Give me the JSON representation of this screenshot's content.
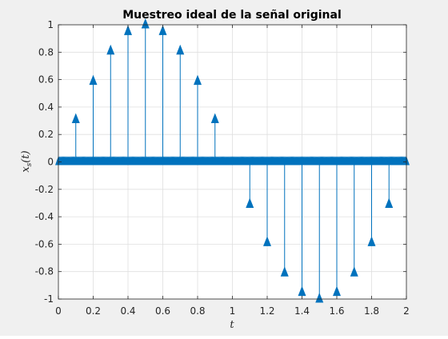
{
  "chart_data": {
    "type": "stem",
    "title": "Muestreo ideal de la señal original",
    "xlabel": "t",
    "ylabel": "x_s(t)",
    "ylabel_main": "x",
    "ylabel_sub": "s",
    "ylabel_arg": "(t)",
    "xlim": [
      0,
      2
    ],
    "ylim": [
      -1,
      1
    ],
    "xticks": [
      0,
      0.2,
      0.4,
      0.6,
      0.8,
      1,
      1.2,
      1.4,
      1.6,
      1.8,
      2
    ],
    "xtick_labels": [
      "0",
      "0.2",
      "0.4",
      "0.6",
      "0.8",
      "1",
      "1.2",
      "1.4",
      "1.6",
      "1.8",
      "2"
    ],
    "yticks": [
      -1,
      -0.8,
      -0.6,
      -0.4,
      -0.2,
      0,
      0.2,
      0.4,
      0.6,
      0.8,
      1
    ],
    "ytick_labels": [
      "-1",
      "-0.8",
      "-0.6",
      "-0.4",
      "-0.2",
      "0",
      "0.2",
      "0.4",
      "0.6",
      "0.8",
      "1"
    ],
    "grid": true,
    "marker": "triangle-up",
    "color": "#0072bd",
    "nonzero_samples": {
      "x": [
        0.1,
        0.2,
        0.3,
        0.4,
        0.5,
        0.6,
        0.7,
        0.8,
        0.9,
        1.1,
        1.2,
        1.3,
        1.4,
        1.5,
        1.6,
        1.7,
        1.8,
        1.9
      ],
      "y": [
        0.309,
        0.588,
        0.809,
        0.951,
        1.0,
        0.951,
        0.809,
        0.588,
        0.309,
        -0.309,
        -0.588,
        -0.809,
        -0.951,
        -1.0,
        -0.951,
        -0.809,
        -0.588,
        -0.309
      ]
    },
    "zero_samples": {
      "start": 0,
      "end": 2,
      "step": 0.005,
      "value": 0
    }
  }
}
